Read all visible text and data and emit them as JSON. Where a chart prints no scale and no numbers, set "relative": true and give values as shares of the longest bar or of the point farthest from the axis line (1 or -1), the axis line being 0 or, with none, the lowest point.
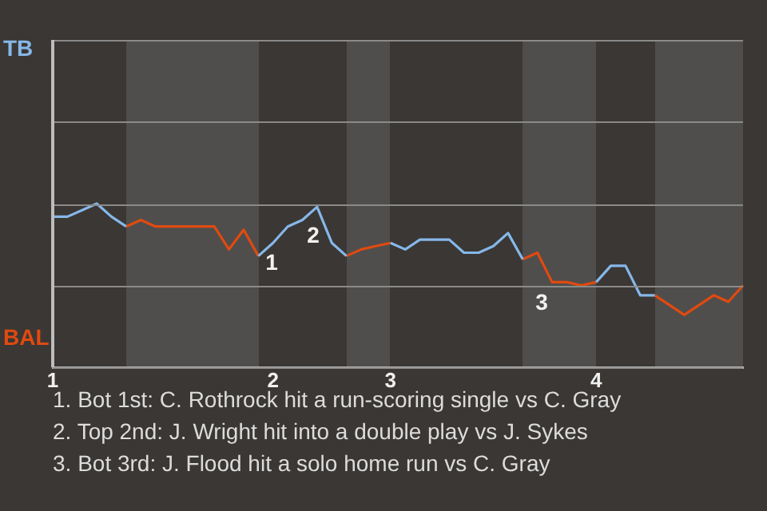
{
  "chart_data": {
    "type": "line",
    "relative": true,
    "categories": [
      "1",
      null,
      null,
      null,
      null,
      null,
      null,
      null,
      null,
      null,
      null,
      null,
      null,
      null,
      null,
      "2",
      null,
      null,
      null,
      null,
      null,
      null,
      null,
      "3",
      null,
      null,
      null,
      null,
      null,
      null,
      null,
      null,
      null,
      null,
      null,
      null,
      null,
      "4",
      null,
      null,
      null,
      null,
      null,
      null,
      null,
      null,
      null,
      null
    ],
    "series": [
      {
        "name": "TB",
        "color": "#86b7e8",
        "values": [
          0.92,
          0.92,
          0.96,
          1,
          0.92,
          0.86,
          null,
          null,
          null,
          null,
          null,
          null,
          null,
          null,
          0.68,
          0.76,
          0.86,
          0.9,
          0.98,
          0.76,
          0.68,
          null,
          null,
          0.76,
          0.72,
          0.78,
          0.78,
          0.78,
          0.7,
          0.7,
          0.74,
          0.82,
          0.66,
          null,
          null,
          null,
          null,
          0.52,
          0.62,
          0.62,
          0.44,
          0.44,
          null,
          null,
          null,
          null,
          null,
          null
        ]
      },
      {
        "name": "BAL",
        "color": "#e04a10",
        "values": [
          null,
          null,
          null,
          null,
          null,
          0.86,
          0.9,
          0.86,
          0.86,
          0.86,
          0.86,
          0.86,
          0.72,
          0.84,
          0.68,
          null,
          null,
          null,
          null,
          null,
          0.68,
          0.72,
          0.74,
          0.76,
          null,
          null,
          null,
          null,
          null,
          null,
          null,
          null,
          0.66,
          0.7,
          0.52,
          0.52,
          0.5,
          0.52,
          null,
          null,
          null,
          0.44,
          0.38,
          0.32,
          0.38,
          0.44,
          0.4,
          0.5
        ]
      }
    ],
    "legend": "left",
    "ref_lines": [
      {
        "axis": "y",
        "value": 0.5,
        "color": "#8a8a8a"
      }
    ],
    "annotations": [
      "1",
      "2",
      "3",
      "1. Bot 1st: C. Rothrock hit a run-scoring single vs C. Gray",
      "2. Top 2nd: J. Wright hit into a double play vs J. Sykes",
      "3. Bot 3rd: J. Flood hit a solo home run vs C. Gray"
    ]
  }
}
